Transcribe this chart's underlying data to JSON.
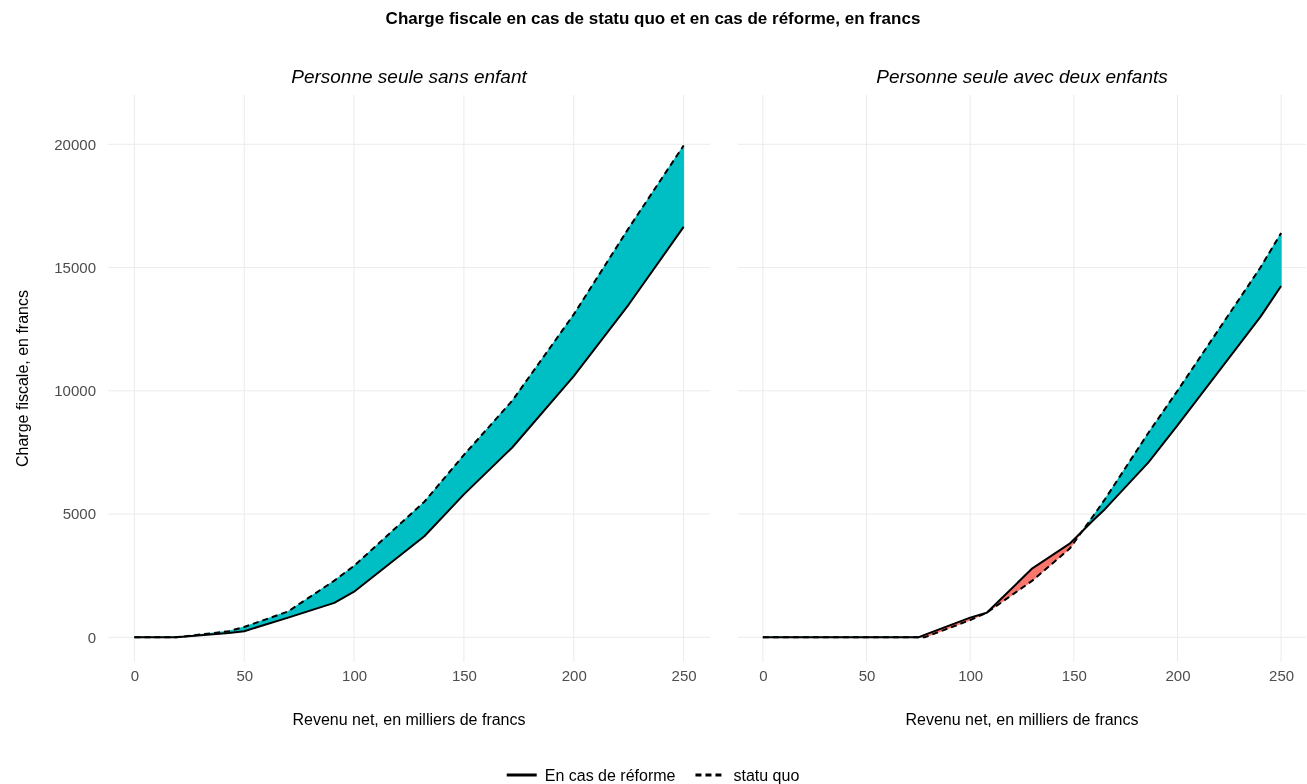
{
  "chart_data": [
    {
      "type": "line",
      "title": "Charge fiscale en cas de statu quo et en cas de réforme, en francs",
      "subtitle": "Personne seule sans enfant",
      "xlabel": "Revenu net, en milliers de francs",
      "ylabel": "Charge fiscale, en francs",
      "xlim": [
        -12,
        262
      ],
      "ylim": [
        -1000,
        22000
      ],
      "xticks": [
        0,
        50,
        100,
        150,
        200,
        250
      ],
      "yticks": [
        0,
        5000,
        10000,
        15000,
        20000
      ],
      "grid": true,
      "legend": "bottom",
      "x": [
        0,
        19,
        43,
        50,
        70,
        91,
        100,
        132,
        150,
        172,
        200,
        225,
        250
      ],
      "series": [
        {
          "name": "En cas de réforme",
          "color": "#000000",
          "line_style": "solid",
          "values": [
            0,
            0,
            180,
            250,
            800,
            1400,
            1850,
            4100,
            5800,
            7700,
            10600,
            13500,
            16650
          ]
        },
        {
          "name": "statu quo",
          "color": "#000000",
          "line_style": "dashed",
          "values": [
            0,
            0,
            250,
            420,
            1050,
            2300,
            2900,
            5500,
            7400,
            9600,
            13100,
            16600,
            19950
          ],
          "lower": [
            0,
            0,
            180,
            250,
            800,
            1400,
            1850,
            4100,
            5800,
            7700,
            10600,
            13500,
            16650
          ],
          "upper": [
            0,
            0,
            250,
            420,
            1050,
            2300,
            2900,
            5500,
            7400,
            9600,
            13100,
            16600,
            19950
          ],
          "colors": [
            "#00bfc4",
            "#00bfc4",
            "#00bfc4",
            "#00bfc4",
            "#00bfc4",
            "#00bfc4",
            "#00bfc4",
            "#00bfc4",
            "#00bfc4",
            "#00bfc4",
            "#00bfc4",
            "#00bfc4",
            "#00bfc4"
          ]
        }
      ]
    },
    {
      "type": "line",
      "subtitle": "Personne seule avec deux enfants",
      "xlabel": "Revenu net, en milliers de francs",
      "xlim": [
        -12,
        262
      ],
      "ylim": [
        -1000,
        22000
      ],
      "xticks": [
        0,
        50,
        100,
        150,
        200,
        250
      ],
      "yticks": [
        0,
        5000,
        10000,
        15000,
        20000
      ],
      "grid": true,
      "tick_labels": "x",
      "x": [
        0,
        75,
        78,
        100,
        108,
        130,
        148,
        160,
        165,
        186,
        200,
        240,
        250
      ],
      "series": [
        {
          "color": "#000000",
          "line_style": "solid",
          "values": [
            0,
            0,
            100,
            800,
            1000,
            2800,
            3800,
            4800,
            5200,
            7100,
            8600,
            13000,
            14250
          ]
        },
        {
          "color": "#000000",
          "line_style": "dashed",
          "values": [
            0,
            0,
            0,
            700,
            1000,
            2300,
            3600,
            5000,
            5600,
            8300,
            10000,
            15000,
            16400
          ],
          "lower": [
            0,
            0,
            100,
            800,
            1000,
            2800,
            3800,
            4800,
            5200,
            7100,
            8600,
            13000,
            14250
          ],
          "upper": [
            0,
            0,
            0,
            700,
            1000,
            2300,
            3600,
            5000,
            5600,
            8300,
            10000,
            15000,
            16400
          ],
          "colors": [
            "#00bfc4",
            "#00bfc4",
            "#f8766d",
            "#f8766d",
            "#f8766d",
            "#f8766d",
            "#f8766d",
            "#00bfc4",
            "#00bfc4",
            "#00bfc4",
            "#00bfc4",
            "#00bfc4",
            "#00bfc4"
          ]
        }
      ]
    }
  ]
}
